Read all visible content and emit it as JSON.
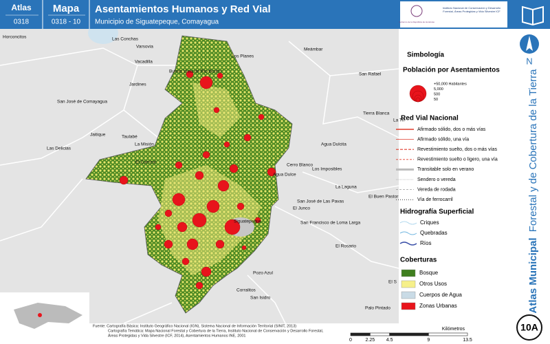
{
  "header": {
    "atlas_label": "Atlas",
    "atlas_code": "0318",
    "map_label": "Mapa",
    "map_code": "0318 - 10",
    "title": "Asentamientos Humanos y Red Vial",
    "subtitle": "Municipio de Siguatepeque, Comayagua",
    "logo_left": "Gobierno de la República de Honduras",
    "logo_right": "Instituto Nacional de Conservación y Desarrollo Forestal, Áreas Protegidas y Vida Silvestre ICF"
  },
  "side": {
    "title_bold": "Atlas Municipal",
    "title_rest": "Forestal y de Cobertura de la Tierra",
    "north": "N",
    "badge": "10A"
  },
  "legend": {
    "title": "Simbología",
    "population_title": "Población por Asentamientos",
    "population_items": [
      "+50,000 Habitantes",
      "5,000",
      "500",
      "50"
    ],
    "roads_title": "Red Vial Nacional",
    "roads_items": [
      "Afirmado sólido, dos o más vías",
      "Afirmado sólido, una vía",
      "Revestimiento suelto, dos o más vías",
      "Revestimiento suelto o ligero, una vía",
      "Transitable solo en verano",
      "Sendero o vereda",
      "Vereda de rodada",
      "Vía de ferrocarril"
    ],
    "hydro_title": "Hidrografía Superficial",
    "hydro_items": [
      "Criques",
      "Quebradas",
      "Ríos"
    ],
    "cover_title": "Coberturas",
    "cover_items": [
      "Bosque",
      "Otros Usos",
      "Cuerpos de Agua",
      "Zonas Urbanas"
    ]
  },
  "places": [
    "Horconcitos",
    "Las Conchas",
    "Varsovia",
    "Vacadilla",
    "Los Planes",
    "Meámbar",
    "San Rafael",
    "Jardines",
    "San José de Comayagua",
    "Tierra Blanca",
    "La Tri",
    "Jaitique",
    "Taulabé",
    "La Misión",
    "Las Delicias",
    "El Carrizal",
    "Agua Dulcita",
    "Cerro Blanco",
    "Los Imposibles",
    "La Laguna",
    "El Buen Pastor",
    "San José de Las Pavas",
    "El Junco",
    "San Francisco de Loma Larga",
    "El Rosario",
    "Pozo Azul",
    "Corralitos",
    "San Isidro",
    "Palo Pintado",
    "Buena Vista de Río Bonito",
    "Siguatepeque",
    "Agua Dulce",
    "El S"
  ],
  "scale": {
    "ticks": [
      0,
      2.25,
      4.5,
      9,
      13.5
    ],
    "unit": "Kilómetros"
  },
  "sources": [
    "Fuente: Cartografía Básica: Instituto Geográfico Nacional (IGN), Sistema Nacional de Información Territorial (SINIT, 2013)",
    "Cartografía Temática: Mapa Nacional Forestal y Cobertura de la Tierra, Instituto Nacional de Conservación y Desarrollo Forestal,",
    "Áreas Protegidas y Vida Silvestre (ICF, 2014), Asentamientos Humanos INE, 2001"
  ]
}
